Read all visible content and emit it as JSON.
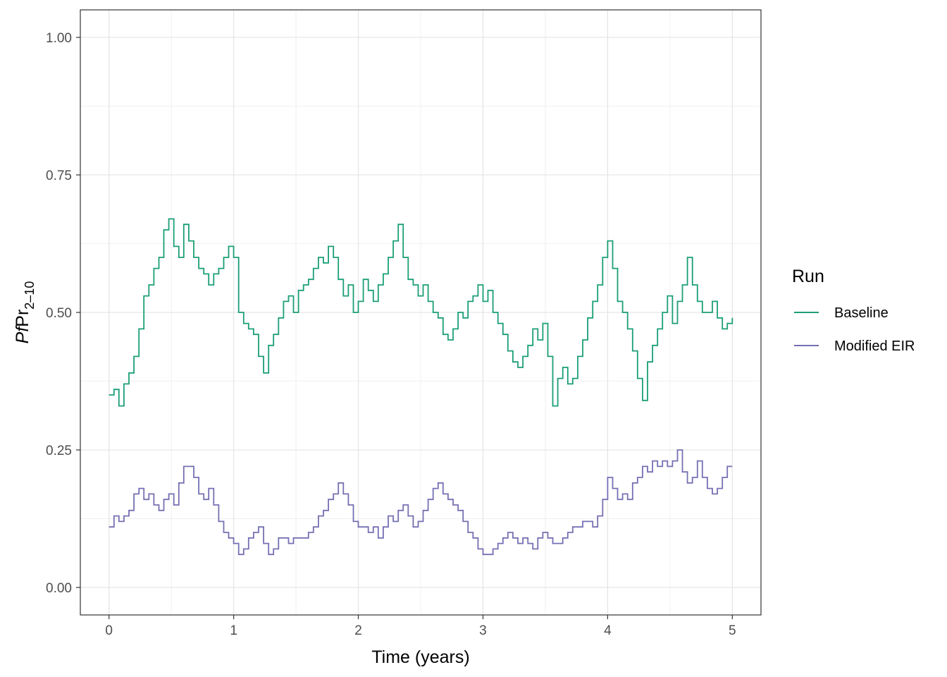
{
  "chart_data": {
    "type": "line",
    "title": "",
    "xlabel": "Time (years)",
    "ylabel_main": "Pf",
    "ylabel_pr": "Pr",
    "ylabel_sub": "2–10",
    "xlim": [
      -0.23,
      5.23
    ],
    "ylim": [
      -0.05,
      1.05
    ],
    "x_ticks": [
      0,
      1,
      2,
      3,
      4,
      5
    ],
    "x_tick_labels": [
      "0",
      "1",
      "2",
      "3",
      "4",
      "5"
    ],
    "y_ticks": [
      0,
      0.25,
      0.5,
      0.75,
      1.0
    ],
    "y_tick_labels": [
      "0.00",
      "0.25",
      "0.50",
      "0.75",
      "1.00"
    ],
    "grid": true,
    "legend": {
      "title": "Run",
      "position": "right"
    },
    "series": [
      {
        "name": "Baseline",
        "color": "#1b9e77",
        "x": [
          0,
          0.04,
          0.08,
          0.12,
          0.16,
          0.2,
          0.24,
          0.28,
          0.32,
          0.36,
          0.4,
          0.44,
          0.48,
          0.52,
          0.56,
          0.6,
          0.64,
          0.68,
          0.72,
          0.76,
          0.8,
          0.84,
          0.88,
          0.92,
          0.96,
          1.0,
          1.04,
          1.08,
          1.12,
          1.16,
          1.2,
          1.24,
          1.28,
          1.32,
          1.36,
          1.4,
          1.44,
          1.48,
          1.52,
          1.56,
          1.6,
          1.64,
          1.68,
          1.72,
          1.76,
          1.8,
          1.84,
          1.88,
          1.92,
          1.96,
          2.0,
          2.04,
          2.08,
          2.12,
          2.16,
          2.2,
          2.24,
          2.28,
          2.32,
          2.36,
          2.4,
          2.44,
          2.48,
          2.52,
          2.56,
          2.6,
          2.64,
          2.68,
          2.72,
          2.76,
          2.8,
          2.84,
          2.88,
          2.92,
          2.96,
          3.0,
          3.04,
          3.08,
          3.12,
          3.16,
          3.2,
          3.24,
          3.28,
          3.32,
          3.36,
          3.4,
          3.44,
          3.48,
          3.52,
          3.56,
          3.6,
          3.64,
          3.68,
          3.72,
          3.76,
          3.8,
          3.84,
          3.88,
          3.92,
          3.96,
          4.0,
          4.04,
          4.08,
          4.12,
          4.16,
          4.2,
          4.24,
          4.28,
          4.32,
          4.36,
          4.4,
          4.44,
          4.48,
          4.52,
          4.56,
          4.6,
          4.64,
          4.68,
          4.72,
          4.76,
          4.8,
          4.84,
          4.88,
          4.92,
          4.96,
          5.0
        ],
        "values": [
          0.35,
          0.36,
          0.33,
          0.37,
          0.39,
          0.42,
          0.47,
          0.53,
          0.55,
          0.58,
          0.6,
          0.65,
          0.67,
          0.62,
          0.6,
          0.66,
          0.63,
          0.6,
          0.58,
          0.57,
          0.55,
          0.57,
          0.58,
          0.6,
          0.62,
          0.6,
          0.5,
          0.48,
          0.47,
          0.46,
          0.42,
          0.39,
          0.44,
          0.46,
          0.49,
          0.52,
          0.53,
          0.5,
          0.54,
          0.55,
          0.56,
          0.58,
          0.6,
          0.59,
          0.62,
          0.6,
          0.56,
          0.53,
          0.55,
          0.5,
          0.52,
          0.56,
          0.54,
          0.52,
          0.55,
          0.57,
          0.6,
          0.63,
          0.66,
          0.6,
          0.56,
          0.55,
          0.53,
          0.55,
          0.52,
          0.5,
          0.49,
          0.46,
          0.45,
          0.47,
          0.5,
          0.49,
          0.52,
          0.53,
          0.55,
          0.52,
          0.54,
          0.5,
          0.48,
          0.46,
          0.43,
          0.41,
          0.4,
          0.42,
          0.44,
          0.47,
          0.45,
          0.48,
          0.42,
          0.33,
          0.38,
          0.4,
          0.37,
          0.38,
          0.42,
          0.45,
          0.49,
          0.52,
          0.55,
          0.6,
          0.63,
          0.58,
          0.52,
          0.5,
          0.47,
          0.43,
          0.38,
          0.34,
          0.41,
          0.44,
          0.47,
          0.5,
          0.53,
          0.48,
          0.52,
          0.55,
          0.6,
          0.55,
          0.52,
          0.5,
          0.5,
          0.52,
          0.49,
          0.47,
          0.48,
          0.49
        ]
      },
      {
        "name": "Modified EIR",
        "color": "#7570b3",
        "x": [
          0,
          0.04,
          0.08,
          0.12,
          0.16,
          0.2,
          0.24,
          0.28,
          0.32,
          0.36,
          0.4,
          0.44,
          0.48,
          0.52,
          0.56,
          0.6,
          0.64,
          0.68,
          0.72,
          0.76,
          0.8,
          0.84,
          0.88,
          0.92,
          0.96,
          1.0,
          1.04,
          1.08,
          1.12,
          1.16,
          1.2,
          1.24,
          1.28,
          1.32,
          1.36,
          1.4,
          1.44,
          1.48,
          1.52,
          1.56,
          1.6,
          1.64,
          1.68,
          1.72,
          1.76,
          1.8,
          1.84,
          1.88,
          1.92,
          1.96,
          2.0,
          2.04,
          2.08,
          2.12,
          2.16,
          2.2,
          2.24,
          2.28,
          2.32,
          2.36,
          2.4,
          2.44,
          2.48,
          2.52,
          2.56,
          2.6,
          2.64,
          2.68,
          2.72,
          2.76,
          2.8,
          2.84,
          2.88,
          2.92,
          2.96,
          3.0,
          3.04,
          3.08,
          3.12,
          3.16,
          3.2,
          3.24,
          3.28,
          3.32,
          3.36,
          3.4,
          3.44,
          3.48,
          3.52,
          3.56,
          3.6,
          3.64,
          3.68,
          3.72,
          3.76,
          3.8,
          3.84,
          3.88,
          3.92,
          3.96,
          4.0,
          4.04,
          4.08,
          4.12,
          4.16,
          4.2,
          4.24,
          4.28,
          4.32,
          4.36,
          4.4,
          4.44,
          4.48,
          4.52,
          4.56,
          4.6,
          4.64,
          4.68,
          4.72,
          4.76,
          4.8,
          4.84,
          4.88,
          4.92,
          4.96,
          5.0
        ],
        "values": [
          0.11,
          0.13,
          0.12,
          0.13,
          0.14,
          0.17,
          0.18,
          0.16,
          0.17,
          0.15,
          0.14,
          0.16,
          0.17,
          0.15,
          0.19,
          0.22,
          0.22,
          0.2,
          0.17,
          0.16,
          0.18,
          0.15,
          0.12,
          0.1,
          0.09,
          0.08,
          0.06,
          0.07,
          0.09,
          0.1,
          0.11,
          0.08,
          0.06,
          0.07,
          0.09,
          0.09,
          0.08,
          0.09,
          0.09,
          0.09,
          0.1,
          0.11,
          0.13,
          0.14,
          0.16,
          0.17,
          0.19,
          0.17,
          0.15,
          0.12,
          0.11,
          0.11,
          0.1,
          0.11,
          0.09,
          0.11,
          0.13,
          0.12,
          0.14,
          0.15,
          0.13,
          0.11,
          0.12,
          0.14,
          0.16,
          0.18,
          0.19,
          0.17,
          0.16,
          0.15,
          0.14,
          0.12,
          0.1,
          0.09,
          0.07,
          0.06,
          0.06,
          0.07,
          0.08,
          0.09,
          0.1,
          0.09,
          0.08,
          0.09,
          0.08,
          0.07,
          0.09,
          0.1,
          0.09,
          0.08,
          0.08,
          0.09,
          0.1,
          0.11,
          0.11,
          0.12,
          0.12,
          0.11,
          0.13,
          0.16,
          0.2,
          0.18,
          0.16,
          0.17,
          0.16,
          0.19,
          0.2,
          0.22,
          0.21,
          0.23,
          0.22,
          0.23,
          0.22,
          0.23,
          0.25,
          0.21,
          0.19,
          0.2,
          0.23,
          0.2,
          0.18,
          0.17,
          0.18,
          0.2,
          0.22,
          0.22
        ]
      }
    ]
  }
}
